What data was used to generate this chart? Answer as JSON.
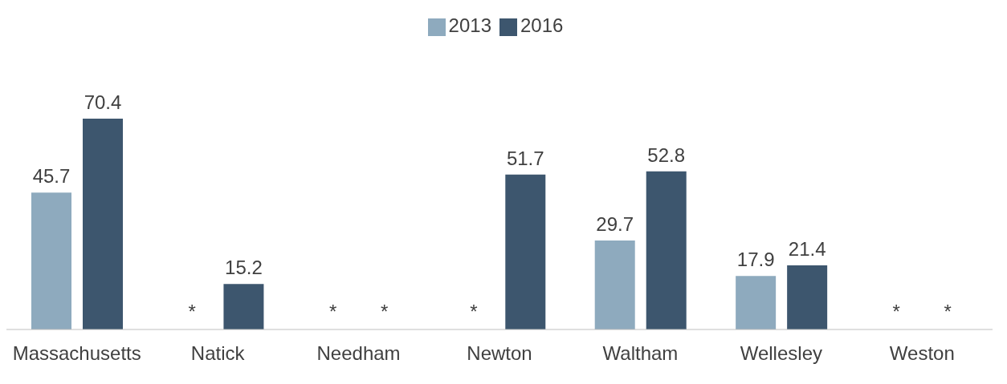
{
  "chart_data": {
    "type": "bar",
    "categories": [
      "Massachusetts",
      "Natick",
      "Needham",
      "Newton",
      "Waltham",
      "Wellesley",
      "Weston"
    ],
    "series": [
      {
        "name": "2013",
        "color": "#8eaabe",
        "values": [
          45.7,
          null,
          null,
          null,
          29.7,
          17.9,
          null
        ],
        "value_labels": [
          "45.7",
          "*",
          "*",
          "*",
          "29.7",
          "17.9",
          "*"
        ]
      },
      {
        "name": "2016",
        "color": "#3d566e",
        "values": [
          70.4,
          15.2,
          null,
          51.7,
          52.8,
          21.4,
          null
        ],
        "value_labels": [
          "70.4",
          "15.2",
          "*",
          "51.7",
          "52.8",
          "21.4",
          "*"
        ]
      }
    ],
    "legend": "top",
    "grid": false
  }
}
